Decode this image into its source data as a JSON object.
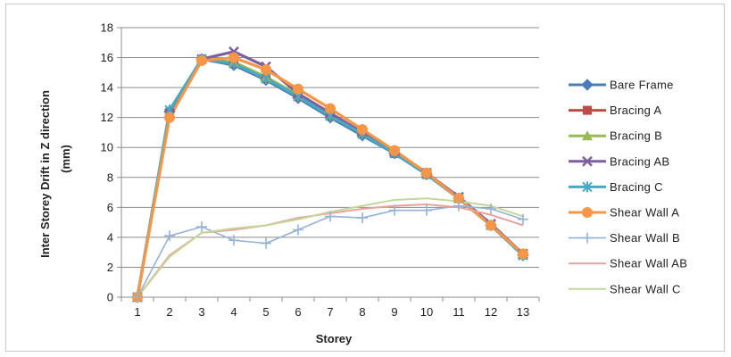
{
  "chart_data": {
    "type": "line",
    "title": "",
    "xlabel": "Storey",
    "ylabel": "Inter Storey  Drift in Z direction",
    "ylabel_unit": "(mm)",
    "categories": [
      1,
      2,
      3,
      4,
      5,
      6,
      7,
      8,
      9,
      10,
      11,
      12,
      13
    ],
    "ylim": [
      0,
      18
    ],
    "yticks": [
      0,
      2,
      4,
      6,
      8,
      10,
      12,
      14,
      16,
      18
    ],
    "grid": "horizontal",
    "legend_position": "right",
    "series": [
      {
        "name": "Bare Frame",
        "color": "#4a7ebb",
        "marker": "diamond",
        "values": [
          0,
          12.4,
          15.9,
          15.5,
          14.5,
          13.3,
          12.0,
          10.8,
          9.6,
          8.2,
          6.6,
          4.8,
          2.8
        ]
      },
      {
        "name": "Bracing A",
        "color": "#be4b48",
        "marker": "square",
        "values": [
          0,
          12.3,
          15.9,
          15.6,
          14.6,
          13.4,
          12.1,
          10.9,
          9.6,
          8.2,
          6.6,
          4.8,
          2.8
        ]
      },
      {
        "name": "Bracing B",
        "color": "#98b954",
        "marker": "triangle",
        "values": [
          0,
          12.2,
          15.9,
          15.7,
          14.7,
          13.5,
          12.2,
          11.0,
          9.7,
          8.3,
          6.6,
          4.8,
          2.8
        ]
      },
      {
        "name": "Bracing AB",
        "color": "#7d60a0",
        "marker": "x",
        "values": [
          0,
          12.3,
          15.9,
          16.4,
          15.4,
          13.6,
          12.3,
          11.0,
          9.7,
          8.3,
          6.7,
          4.9,
          2.9
        ]
      },
      {
        "name": "Bracing C",
        "color": "#46aac5",
        "marker": "star",
        "values": [
          0,
          12.5,
          15.9,
          15.6,
          14.6,
          13.4,
          12.1,
          10.9,
          9.6,
          8.2,
          6.6,
          4.8,
          2.8
        ]
      },
      {
        "name": "Shear Wall A",
        "color": "#f79646",
        "marker": "circle",
        "values": [
          0,
          12.0,
          15.8,
          16.0,
          15.2,
          13.9,
          12.6,
          11.2,
          9.8,
          8.3,
          6.6,
          4.8,
          2.9
        ]
      },
      {
        "name": "Shear Wall B",
        "color": "#94b3d7",
        "marker": "plus",
        "values": [
          0,
          4.1,
          4.7,
          3.8,
          3.6,
          4.5,
          5.4,
          5.3,
          5.8,
          5.8,
          6.1,
          5.9,
          5.2
        ]
      },
      {
        "name": "Shear Wall AB",
        "color": "#e9a19f",
        "marker": "none",
        "values": [
          0,
          2.8,
          4.3,
          4.5,
          4.8,
          5.3,
          5.6,
          5.9,
          6.1,
          6.2,
          6.0,
          5.5,
          4.8
        ]
      },
      {
        "name": "Shear Wall C",
        "color": "#c4d79b",
        "marker": "none",
        "values": [
          0,
          2.7,
          4.3,
          4.6,
          4.8,
          5.2,
          5.7,
          6.1,
          6.5,
          6.6,
          6.4,
          6.1,
          5.4
        ]
      }
    ]
  }
}
